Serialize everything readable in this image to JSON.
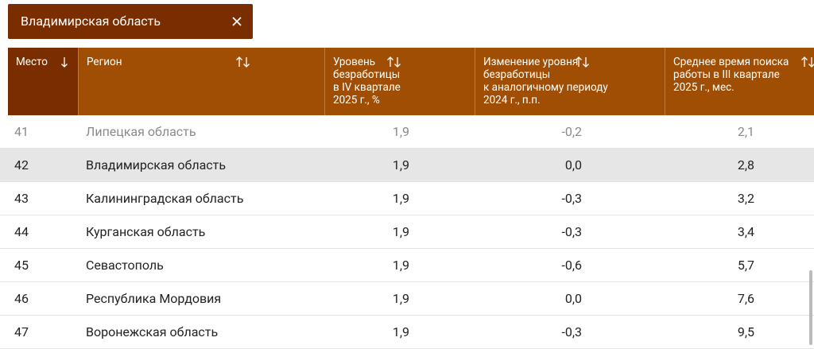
{
  "filter": {
    "label": "Владимирская область"
  },
  "table": {
    "headers": [
      [
        "Место"
      ],
      [
        "Регион"
      ],
      [
        "Уровень",
        "безработицы",
        "в IV квартале",
        "2025 г., %"
      ],
      [
        "Изменение уровня",
        "безработицы",
        "к аналогичному периоду",
        "2024 г., п.п."
      ],
      [
        "Среднее время поиска",
        "работы в III квартале",
        "2025 г., мес."
      ]
    ],
    "rows": [
      [
        "41",
        "Липецкая область",
        "1,9",
        "-0,2",
        "2,1"
      ],
      [
        "42",
        "Владимирская область",
        "1,9",
        "0,0",
        "2,8"
      ],
      [
        "43",
        "Калининградская область",
        "1,9",
        "-0,3",
        "3,2"
      ],
      [
        "44",
        "Курганская область",
        "1,9",
        "-0,3",
        "3,4"
      ],
      [
        "45",
        "Севастополь",
        "1,9",
        "-0,6",
        "5,7"
      ],
      [
        "46",
        "Республика Мордовия",
        "1,9",
        "0,0",
        "7,6"
      ],
      [
        "47",
        "Воронежская область",
        "1,9",
        "-0,3",
        "9,5"
      ]
    ]
  }
}
